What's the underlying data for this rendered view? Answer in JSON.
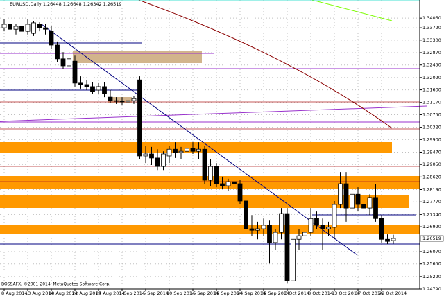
{
  "chart_data": {
    "type": "candlestick",
    "title": "EURUSD,Daily  1.26448 1.26648 1.26342 1.26519",
    "footer": "BOSSAFX, ©2001-2014, MetaQuotes Software Corp.",
    "categories": [
      "8 Aug 2014",
      null,
      null,
      null,
      "13 Aug 2014",
      null,
      null,
      null,
      "18 Aug 2014",
      null,
      null,
      null,
      "22 Aug 2014",
      null,
      null,
      null,
      "27 Aug 2014",
      null,
      null,
      null,
      "1 Sep 2014",
      null,
      null,
      null,
      "5 Sep 2014",
      null,
      null,
      null,
      "10 Sep 2014",
      null,
      null,
      null,
      "15 Sep 2014",
      null,
      null,
      null,
      "19 Sep 2014",
      null,
      null,
      null,
      "24 Sep 2014",
      null,
      null,
      null,
      "29 Sep 2014",
      null,
      null,
      null,
      "3 Oct 2014",
      null,
      null,
      null,
      "8 Oct 2014",
      null,
      null,
      null,
      "13 Oct 2014",
      null,
      null,
      null,
      "17 Oct 2014",
      null,
      null,
      null,
      "22 Oct 2014",
      null,
      null
    ],
    "open": [
      1.3372,
      1.3384,
      1.3367,
      1.3377,
      1.336,
      1.3353,
      1.3384,
      1.3372,
      1.336,
      1.3313,
      1.3266,
      1.3242,
      1.3258,
      1.3183,
      1.3178,
      1.3171,
      1.3159,
      1.3171,
      1.3135,
      1.3123,
      1.3121,
      1.3119,
      1.3123,
      1.3194,
      1.2934,
      1.2941,
      1.2927,
      1.2898,
      1.2934,
      1.2957,
      1.2946,
      1.295,
      1.296,
      1.295,
      1.2957,
      1.2851,
      1.2898,
      1.2839,
      1.2832,
      1.2846,
      1.2839,
      1.278,
      1.2685,
      1.268,
      1.2685,
      1.2697,
      1.2638,
      1.2673,
      1.2737,
      1.2507,
      1.2649,
      1.2661,
      1.2673,
      1.272,
      1.2697,
      1.2685,
      1.269,
      1.2768,
      1.2839,
      1.2756,
      1.2803,
      1.2768,
      1.2756,
      1.2792,
      1.272,
      1.2649,
      1.26448
    ],
    "high": [
      1.3401,
      1.3396,
      1.3384,
      1.3396,
      1.3401,
      1.3396,
      1.3391,
      1.3384,
      1.3377,
      1.3325,
      1.3289,
      1.3277,
      1.3277,
      1.3206,
      1.3194,
      1.3187,
      1.3183,
      1.3187,
      1.3159,
      1.3135,
      1.3135,
      1.313,
      1.314,
      1.3206,
      1.2969,
      1.2965,
      1.2957,
      1.295,
      1.2969,
      1.2981,
      1.2965,
      1.2969,
      1.2981,
      1.2981,
      1.2969,
      1.2922,
      1.291,
      1.2863,
      1.2856,
      1.2863,
      1.2851,
      1.2792,
      1.2732,
      1.2709,
      1.272,
      1.2713,
      1.2685,
      1.2756,
      1.2756,
      1.2661,
      1.2685,
      1.2697,
      1.2756,
      1.2744,
      1.272,
      1.2709,
      1.278,
      1.2879,
      1.2879,
      1.2815,
      1.2827,
      1.278,
      1.2803,
      1.2839,
      1.2732,
      1.2666,
      1.26648
    ],
    "low": [
      1.336,
      1.336,
      1.3349,
      1.3325,
      1.3349,
      1.3344,
      1.336,
      1.3349,
      1.3301,
      1.3254,
      1.323,
      1.3225,
      1.3171,
      1.3164,
      1.3159,
      1.3147,
      1.3147,
      1.3135,
      1.3116,
      1.3112,
      1.3107,
      1.31,
      1.3112,
      1.2922,
      1.291,
      1.2903,
      1.2886,
      1.2886,
      1.291,
      1.2927,
      1.2922,
      1.2934,
      1.2941,
      1.2922,
      1.2839,
      1.2832,
      1.2827,
      1.2822,
      1.2815,
      1.2827,
      1.2768,
      1.2673,
      1.2661,
      1.2649,
      1.2661,
      1.2566,
      1.2614,
      1.2649,
      1.25,
      1.2495,
      1.2614,
      1.2638,
      1.2661,
      1.2685,
      1.2614,
      1.2661,
      1.2649,
      1.2756,
      1.2709,
      1.2744,
      1.2744,
      1.2744,
      1.2732,
      1.2709,
      1.2638,
      1.2633,
      1.26342
    ],
    "close": [
      1.3384,
      1.3367,
      1.3377,
      1.336,
      1.3384,
      1.3389,
      1.3372,
      1.3367,
      1.3313,
      1.3266,
      1.3242,
      1.3266,
      1.3183,
      1.3178,
      1.3171,
      1.3154,
      1.3171,
      1.3147,
      1.3123,
      1.3121,
      1.3119,
      1.3123,
      1.313,
      1.2934,
      1.2941,
      1.2927,
      1.2898,
      1.2941,
      1.2957,
      1.2946,
      1.295,
      1.296,
      1.295,
      1.2957,
      1.2851,
      1.2898,
      1.2839,
      1.2832,
      1.2846,
      1.2839,
      1.278,
      1.2685,
      1.268,
      1.2685,
      1.2697,
      1.2638,
      1.2673,
      1.2737,
      1.2507,
      1.2649,
      1.2661,
      1.2673,
      1.272,
      1.2697,
      1.2685,
      1.269,
      1.2768,
      1.2839,
      1.2756,
      1.2803,
      1.2768,
      1.2756,
      1.2792,
      1.272,
      1.2649,
      1.2642,
      1.26519
    ],
    "up_color": "#ffffff",
    "down_color": "#000000",
    "current_price": 1.26519,
    "ylim": [
      1.2479,
      1.3467
    ],
    "yticks": [
      {
        "value": 1.3405,
        "label": "1.34050"
      },
      {
        "value": 1.3372,
        "label": "1.33720"
      },
      {
        "value": 1.333,
        "label": "1.33300"
      },
      {
        "value": 1.3287,
        "label": "1.32870"
      },
      {
        "value": 1.3245,
        "label": "1.32450"
      },
      {
        "value": 1.3202,
        "label": "1.32020"
      },
      {
        "value": 1.316,
        "label": "1.31600"
      },
      {
        "value": 1.3117,
        "label": "1.31170"
      },
      {
        "value": 1.3075,
        "label": "1.30750"
      },
      {
        "value": 1.3032,
        "label": "1.30320"
      },
      {
        "value": 1.299,
        "label": "1.29900"
      },
      {
        "value": 1.2947,
        "label": "1.29470"
      },
      {
        "value": 1.2905,
        "label": "1.29050"
      },
      {
        "value": 1.2862,
        "label": "1.28620"
      },
      {
        "value": 1.2819,
        "label": "1.28190"
      },
      {
        "value": 1.2777,
        "label": "1.27770"
      },
      {
        "value": 1.2734,
        "label": "1.27340"
      },
      {
        "value": 1.2692,
        "label": "1.26920"
      },
      {
        "value": 1.2607,
        "label": "1.26070"
      },
      {
        "value": 1.2565,
        "label": "1.25650"
      },
      {
        "value": 1.2522,
        "label": "1.25220"
      },
      {
        "value": 1.2479,
        "label": "1.24790"
      }
    ],
    "grid": true
  }
}
